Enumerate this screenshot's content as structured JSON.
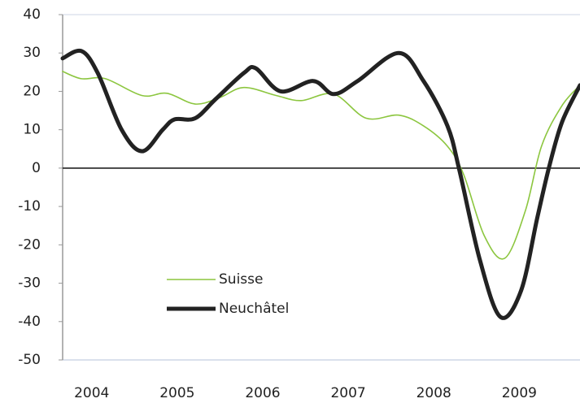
{
  "chart_data": {
    "type": "line",
    "ylim": [
      -50,
      40
    ],
    "yticks": [
      -50,
      -40,
      -30,
      -20,
      -10,
      0,
      10,
      20,
      30,
      40
    ],
    "xlim": [
      2004.16,
      2010.21
    ],
    "xticks": [
      {
        "value": 2004.5,
        "label": "2004"
      },
      {
        "value": 2005.5,
        "label": "2005"
      },
      {
        "value": 2006.5,
        "label": "2006"
      },
      {
        "value": 2007.5,
        "label": "2007"
      },
      {
        "value": 2008.5,
        "label": "2008"
      },
      {
        "value": 2009.5,
        "label": "2009"
      }
    ],
    "legend": "lower left",
    "series": [
      {
        "name": "Suisse",
        "color": "#8cc63f",
        "width": 1.6,
        "x": [
          2004.16,
          2004.38,
          2004.66,
          2005.09,
          2005.38,
          2005.71,
          2006.0,
          2006.28,
          2006.66,
          2006.95,
          2007.33,
          2007.71,
          2008.09,
          2008.38,
          2008.66,
          2008.85,
          2009.09,
          2009.33,
          2009.57,
          2009.76,
          2010.0,
          2010.21
        ],
        "values": [
          25.2,
          23.3,
          23.3,
          18.9,
          19.5,
          16.7,
          18.4,
          21,
          18.9,
          17.6,
          19.3,
          13,
          13.8,
          11,
          5.7,
          -1.7,
          -17.6,
          -23.5,
          -11.2,
          5.7,
          16.3,
          21.6
        ]
      },
      {
        "name": "Neuchâtel",
        "color": "#222222",
        "width": 5,
        "x": [
          2004.16,
          2004.38,
          2004.57,
          2004.85,
          2005.09,
          2005.33,
          2005.47,
          2005.71,
          2005.95,
          2006.28,
          2006.42,
          2006.71,
          2007.09,
          2007.33,
          2007.61,
          2008.09,
          2008.38,
          2008.66,
          2008.8,
          2009.04,
          2009.28,
          2009.52,
          2009.71,
          2009.85,
          2010.0,
          2010.21
        ],
        "values": [
          28.6,
          30.5,
          24.8,
          10,
          4.4,
          10,
          12.7,
          13,
          18,
          24.8,
          26,
          20,
          22.7,
          19.3,
          22.7,
          30,
          22.7,
          11,
          -0.6,
          -24,
          -38.8,
          -32,
          -13,
          0.4,
          12,
          21.6
        ]
      }
    ]
  }
}
